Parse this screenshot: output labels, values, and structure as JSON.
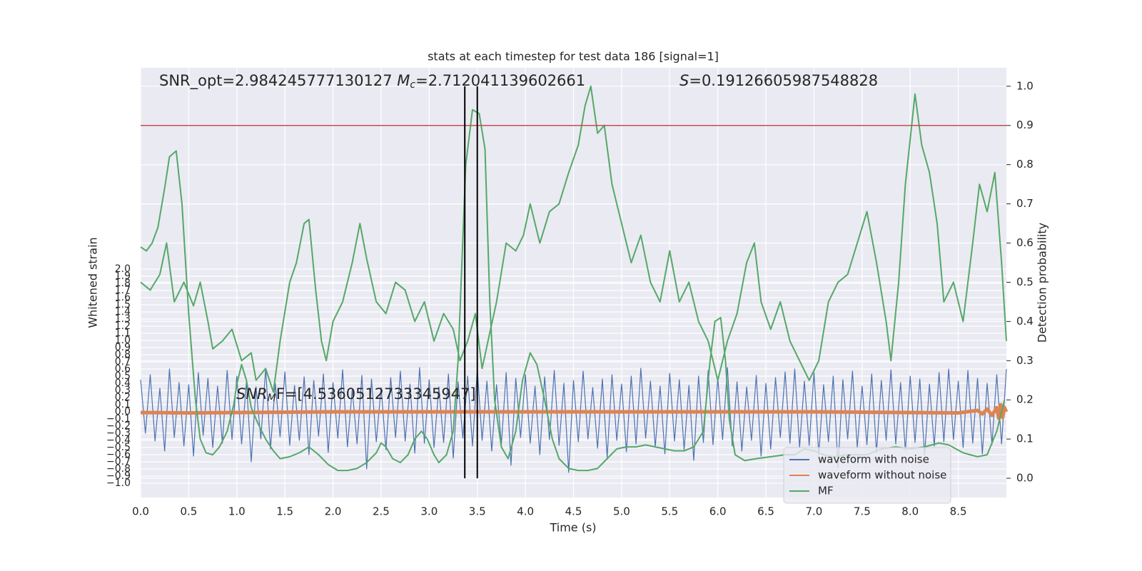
{
  "chart_data": {
    "type": "line",
    "title": "stats at each timestep for test data 186 [signal=1]",
    "xlabel": "Time (s)",
    "ylabel": "Whitened strain",
    "y2label": "Detection probability",
    "annotations": [
      "SNR_opt=2.984245777130127 ",
      "M",
      "c",
      "=2.712041139602661",
      "S",
      "=0.19126605987548828",
      "SNR",
      "M",
      "F=[4.5360512733345947]"
    ],
    "xlim": [
      0,
      9
    ],
    "ylim": [
      -1.2,
      4.82
    ],
    "y2lim": [
      -0.049,
      1.047
    ],
    "xticks": [
      {
        "value": 0,
        "label": "0.0"
      },
      {
        "value": 0.5,
        "label": "0.5"
      },
      {
        "value": 1,
        "label": "1.0"
      },
      {
        "value": 1.5,
        "label": "1.5"
      },
      {
        "value": 2,
        "label": "2.0"
      },
      {
        "value": 2.5,
        "label": "2.5"
      },
      {
        "value": 3,
        "label": "3.0"
      },
      {
        "value": 3.5,
        "label": "3.5"
      },
      {
        "value": 4,
        "label": "4.0"
      },
      {
        "value": 4.5,
        "label": "4.5"
      },
      {
        "value": 5,
        "label": "5.0"
      },
      {
        "value": 5.5,
        "label": "5.5"
      },
      {
        "value": 6,
        "label": "6.0"
      },
      {
        "value": 6.5,
        "label": "6.5"
      },
      {
        "value": 7,
        "label": "7.0"
      },
      {
        "value": 7.5,
        "label": "7.5"
      },
      {
        "value": 8,
        "label": "8.0"
      },
      {
        "value": 8.5,
        "label": "8.5"
      }
    ],
    "yticks": [
      {
        "value": -1,
        "label": "−1.0"
      },
      {
        "value": -0.9,
        "label": "−0.9"
      },
      {
        "value": -0.8,
        "label": "−0.8"
      },
      {
        "value": -0.7,
        "label": "−0.7"
      },
      {
        "value": -0.6,
        "label": "−0.6"
      },
      {
        "value": -0.5,
        "label": "−0.5"
      },
      {
        "value": -0.4,
        "label": "−0.4"
      },
      {
        "value": -0.3,
        "label": "−0.3"
      },
      {
        "value": -0.2,
        "label": "−0.2"
      },
      {
        "value": -0.1,
        "label": "−0.1"
      },
      {
        "value": 0,
        "label": "0.0"
      },
      {
        "value": 0.1,
        "label": "0.1"
      },
      {
        "value": 0.2,
        "label": "0.2"
      },
      {
        "value": 0.3,
        "label": "0.3"
      },
      {
        "value": 0.4,
        "label": "0.4"
      },
      {
        "value": 0.5,
        "label": "0.5"
      },
      {
        "value": 0.6,
        "label": "0.6"
      },
      {
        "value": 0.7,
        "label": "0.7"
      },
      {
        "value": 0.8,
        "label": "0.8"
      },
      {
        "value": 0.9,
        "label": "0.9"
      },
      {
        "value": 1,
        "label": "1.0"
      },
      {
        "value": 1.1,
        "label": "1.1"
      },
      {
        "value": 1.2,
        "label": "1.2"
      },
      {
        "value": 1.3,
        "label": "1.3"
      },
      {
        "value": 1.4,
        "label": "1.4"
      },
      {
        "value": 1.5,
        "label": "1.5"
      },
      {
        "value": 1.6,
        "label": "1.6"
      },
      {
        "value": 1.7,
        "label": "1.7"
      },
      {
        "value": 1.8,
        "label": "1.8"
      },
      {
        "value": 1.9,
        "label": "1.9"
      },
      {
        "value": 2,
        "label": "2.0"
      }
    ],
    "y2ticks": [
      {
        "value": 0,
        "label": "0.0"
      },
      {
        "value": 0.1,
        "label": "0.1"
      },
      {
        "value": 0.2,
        "label": "0.2"
      },
      {
        "value": 0.3,
        "label": "0.3"
      },
      {
        "value": 0.4,
        "label": "0.4"
      },
      {
        "value": 0.5,
        "label": "0.5"
      },
      {
        "value": 0.6,
        "label": "0.6"
      },
      {
        "value": 0.7,
        "label": "0.7"
      },
      {
        "value": 0.8,
        "label": "0.8"
      },
      {
        "value": 0.9,
        "label": "0.9"
      },
      {
        "value": 1,
        "label": "1.0"
      }
    ],
    "grid": true,
    "legend": "lower right",
    "hline": {
      "value": 0.9,
      "axis": "y2",
      "color": "#c44e52"
    },
    "vlines": {
      "x": [
        3.37,
        3.5
      ],
      "ymin": 0,
      "ymax": 1,
      "axis": "y2",
      "color": "#000000"
    },
    "series": [
      {
        "name": "waveform with noise",
        "color": "#4c72b0",
        "width": 1.2,
        "x": [
          0,
          0.05,
          0.1,
          0.15,
          0.2,
          0.25,
          0.3,
          0.35,
          0.4,
          0.45,
          0.5,
          0.55,
          0.6,
          0.65,
          0.7,
          0.75,
          0.8,
          0.85,
          0.9,
          0.95,
          1,
          1.05,
          1.1,
          1.15,
          1.2,
          1.25,
          1.3,
          1.35,
          1.4,
          1.45,
          1.5,
          1.55,
          1.6,
          1.65,
          1.7,
          1.75,
          1.8,
          1.85,
          1.9,
          1.95,
          2,
          2.05,
          2.1,
          2.15,
          2.2,
          2.25,
          2.3,
          2.35,
          2.4,
          2.45,
          2.5,
          2.55,
          2.6,
          2.65,
          2.7,
          2.75,
          2.8,
          2.85,
          2.9,
          2.95,
          3,
          3.05,
          3.1,
          3.15,
          3.2,
          3.25,
          3.3,
          3.35,
          3.4,
          3.45,
          3.5,
          3.55,
          3.6,
          3.65,
          3.7,
          3.75,
          3.8,
          3.85,
          3.9,
          3.95,
          4,
          4.05,
          4.1,
          4.15,
          4.2,
          4.25,
          4.3,
          4.35,
          4.4,
          4.45,
          4.5,
          4.55,
          4.6,
          4.65,
          4.7,
          4.75,
          4.8,
          4.85,
          4.9,
          4.95,
          5,
          5.05,
          5.1,
          5.15,
          5.2,
          5.25,
          5.3,
          5.35,
          5.4,
          5.45,
          5.5,
          5.55,
          5.6,
          5.65,
          5.7,
          5.75,
          5.8,
          5.85,
          5.9,
          5.95,
          6,
          6.05,
          6.1,
          6.15,
          6.2,
          6.25,
          6.3,
          6.35,
          6.4,
          6.45,
          6.5,
          6.55,
          6.6,
          6.65,
          6.7,
          6.75,
          6.8,
          6.85,
          6.9,
          6.95,
          7,
          7.05,
          7.1,
          7.15,
          7.2,
          7.25,
          7.3,
          7.35,
          7.4,
          7.45,
          7.5,
          7.55,
          7.6,
          7.65,
          7.7,
          7.75,
          7.8,
          7.85,
          7.9,
          7.95,
          8,
          8.05,
          8.1,
          8.15,
          8.2,
          8.25,
          8.3,
          8.35,
          8.4,
          8.45,
          8.5,
          8.55,
          8.6,
          8.65,
          8.7,
          8.75,
          8.8,
          8.85,
          8.9,
          8.95,
          9
        ],
        "values": [
          0.45,
          -0.3,
          0.52,
          -0.41,
          0.33,
          -0.55,
          0.6,
          -0.36,
          0.41,
          -0.48,
          0.38,
          -0.62,
          0.55,
          -0.33,
          0.47,
          -0.5,
          0.36,
          -0.44,
          0.58,
          -0.39,
          0.5,
          -0.45,
          0.42,
          -0.7,
          0.35,
          -0.38,
          0.61,
          -0.52,
          0.4,
          -0.35,
          0.56,
          -0.47,
          0.37,
          -0.4,
          0.49,
          -0.6,
          0.44,
          -0.34,
          0.53,
          -0.57,
          0.41,
          -0.37,
          0.59,
          -0.49,
          0.32,
          -0.45,
          0.51,
          -0.8,
          0.46,
          -0.42,
          0.34,
          -0.53,
          0.48,
          -0.36,
          0.57,
          -0.41,
          0.39,
          -0.58,
          0.62,
          -0.44,
          0.45,
          -0.5,
          0.35,
          -0.43,
          0.53,
          -0.65,
          0.42,
          -0.37,
          0.5,
          -0.48,
          0.6,
          -0.4,
          0.43,
          -0.55,
          0.38,
          -0.46,
          0.55,
          -0.75,
          0.47,
          -0.36,
          0.52,
          -0.44,
          0.36,
          -0.6,
          0.49,
          -0.39,
          0.58,
          -0.47,
          0.4,
          -0.85,
          0.44,
          -0.42,
          0.57,
          -0.38,
          0.34,
          -0.51,
          0.46,
          -0.64,
          0.52,
          -0.4,
          0.39,
          -0.56,
          0.5,
          -0.45,
          0.61,
          -0.37,
          0.43,
          -0.49,
          0.36,
          -0.59,
          0.54,
          -0.41,
          0.45,
          -0.53,
          0.37,
          -0.68,
          0.5,
          -0.43,
          0.58,
          -0.46,
          0.47,
          -0.39,
          0.62,
          -0.48,
          0.42,
          -0.55,
          0.35,
          -0.4,
          0.51,
          -0.62,
          0.4,
          -0.52,
          0.48,
          -0.36,
          0.56,
          -0.44,
          0.6,
          -0.5,
          0.43,
          -0.47,
          0.55,
          -0.6,
          0.38,
          -0.42,
          0.5,
          -0.78,
          0.45,
          -0.38,
          0.57,
          -0.5,
          0.36,
          -0.46,
          0.53,
          -0.57,
          0.44,
          -0.4,
          0.59,
          -0.45,
          0.41,
          -0.54,
          0.5,
          -0.43,
          0.46,
          -0.61,
          0.39,
          -0.48,
          0.55,
          -0.42,
          0.6,
          -0.39,
          0.43,
          -0.5,
          0.58,
          -0.44,
          0.47,
          -0.59,
          0.4,
          -0.46,
          0.52,
          -0.45,
          0.6
        ]
      },
      {
        "name": "waveform without noise",
        "color": "#dd8452",
        "width": 5,
        "x": [
          0,
          0.5,
          1,
          1.5,
          2,
          2.5,
          3,
          3.5,
          4,
          4.5,
          5,
          5.5,
          6,
          6.5,
          7,
          7.5,
          8,
          8.5,
          8.7,
          8.75,
          8.8,
          8.85,
          8.9,
          8.92,
          8.94,
          8.96,
          8.98,
          9
        ],
        "values": [
          -0.01,
          -0.015,
          -0.01,
          -0.005,
          0,
          0,
          0,
          0,
          0,
          0,
          0,
          0,
          0,
          0,
          0,
          -0.005,
          -0.01,
          -0.015,
          0.02,
          -0.03,
          0.04,
          -0.05,
          0.06,
          -0.09,
          0.1,
          -0.08,
          0.06,
          0
        ]
      },
      {
        "name": "MF",
        "color": "#55a868",
        "width": 2,
        "axis": "y2",
        "x": [
          0,
          0.06,
          0.12,
          0.18,
          0.25,
          0.3,
          0.37,
          0.43,
          0.5,
          0.57,
          0.62,
          0.68,
          0.75,
          0.82,
          0.9,
          0.97,
          1,
          1.05,
          1.1,
          1.15,
          1.22,
          1.3,
          1.38,
          1.45,
          1.55,
          1.65,
          1.75,
          1.85,
          1.95,
          2.05,
          2.15,
          2.25,
          2.35,
          2.45,
          2.5,
          2.55,
          2.62,
          2.7,
          2.78,
          2.85,
          2.92,
          2.98,
          3.05,
          3.1,
          3.18,
          3.25,
          3.3,
          3.38,
          3.45,
          3.52,
          3.58,
          3.63,
          3.68,
          3.75,
          3.82,
          3.9,
          3.97,
          4.05,
          4.12,
          4.2,
          4.28,
          4.35,
          4.45,
          4.55,
          4.65,
          4.75,
          4.85,
          4.95,
          5.05,
          5.15,
          5.25,
          5.35,
          5.45,
          5.55,
          5.65,
          5.75,
          5.85,
          5.92,
          5.97,
          6.03,
          6.08,
          6.12,
          6.18,
          6.28,
          6.4,
          6.55,
          6.7,
          6.8,
          6.9,
          7,
          7.1,
          7.2,
          7.35,
          7.45,
          7.55,
          7.7,
          7.85,
          8,
          8.15,
          8.3,
          8.4,
          8.55,
          8.7,
          8.8,
          8.9,
          8.98,
          null,
          0,
          0.1,
          0.2,
          0.27,
          0.35,
          0.45,
          0.55,
          0.62,
          0.7,
          0.75,
          0.85,
          0.95,
          1.05,
          1.15,
          1.2,
          1.3,
          1.38,
          1.45,
          1.55,
          1.62,
          1.7,
          1.75,
          1.82,
          1.88,
          1.93,
          2,
          2.1,
          2.2,
          2.28,
          2.35,
          2.45,
          2.55,
          2.65,
          2.75,
          2.85,
          2.95,
          3.05,
          3.15,
          3.25,
          3.32,
          3.4,
          3.48,
          3.55,
          3.62,
          3.7,
          3.8,
          3.9,
          3.98,
          4.05,
          4.15,
          4.25,
          4.35,
          4.45,
          4.55,
          4.62,
          4.68,
          4.75,
          4.82,
          4.9,
          5,
          5.1,
          5.2,
          5.3,
          5.4,
          5.5,
          5.6,
          5.7,
          5.8,
          5.9,
          6,
          6.1,
          6.2,
          6.3,
          6.38,
          6.45,
          6.55,
          6.65,
          6.75,
          6.85,
          6.95,
          7.05,
          7.15,
          7.25,
          7.35,
          7.45,
          7.55,
          7.65,
          7.75,
          7.8,
          7.88,
          7.95,
          8.05,
          8.12,
          8.2,
          8.28,
          8.35,
          8.45,
          8.55,
          8.65,
          8.72,
          8.8,
          8.88,
          8.95,
          9
        ],
        "values": [
          0.59,
          0.58,
          0.6,
          0.64,
          0.74,
          0.82,
          0.835,
          0.7,
          0.42,
          0.2,
          0.1,
          0.065,
          0.06,
          0.08,
          0.12,
          0.19,
          0.24,
          0.29,
          0.25,
          0.18,
          0.14,
          0.1,
          0.07,
          0.05,
          0.055,
          0.065,
          0.08,
          0.06,
          0.035,
          0.02,
          0.02,
          0.025,
          0.04,
          0.065,
          0.09,
          0.08,
          0.05,
          0.04,
          0.06,
          0.1,
          0.12,
          0.1,
          0.06,
          0.04,
          0.06,
          0.12,
          0.3,
          0.8,
          0.94,
          0.93,
          0.84,
          0.45,
          0.2,
          0.08,
          0.05,
          0.12,
          0.25,
          0.32,
          0.29,
          0.2,
          0.1,
          0.05,
          0.025,
          0.02,
          0.02,
          0.025,
          0.05,
          0.075,
          0.08,
          0.08,
          0.085,
          0.08,
          0.075,
          0.07,
          0.07,
          0.08,
          0.12,
          0.3,
          0.4,
          0.41,
          0.3,
          0.15,
          0.06,
          0.045,
          0.05,
          0.055,
          0.06,
          0.06,
          0.075,
          0.07,
          0.06,
          0.055,
          0.06,
          0.06,
          0.06,
          0.075,
          0.08,
          0.075,
          0.08,
          0.09,
          0.085,
          0.065,
          0.055,
          0.06,
          0.12,
          0.2,
          null,
          0.5,
          0.48,
          0.52,
          0.6,
          0.45,
          0.5,
          0.44,
          0.5,
          0.4,
          0.33,
          0.35,
          0.38,
          0.3,
          0.32,
          0.25,
          0.28,
          0.22,
          0.35,
          0.5,
          0.55,
          0.65,
          0.66,
          0.48,
          0.35,
          0.3,
          0.4,
          0.45,
          0.55,
          0.65,
          0.56,
          0.45,
          0.42,
          0.5,
          0.48,
          0.4,
          0.45,
          0.35,
          0.42,
          0.38,
          0.3,
          0.35,
          0.42,
          0.28,
          0.36,
          0.45,
          0.6,
          0.58,
          0.62,
          0.7,
          0.6,
          0.68,
          0.7,
          0.78,
          0.85,
          0.95,
          1,
          0.88,
          0.9,
          0.75,
          0.65,
          0.55,
          0.62,
          0.5,
          0.45,
          0.58,
          0.45,
          0.5,
          0.4,
          0.35,
          0.25,
          0.35,
          0.42,
          0.55,
          0.6,
          0.45,
          0.38,
          0.45,
          0.35,
          0.3,
          0.25,
          0.3,
          0.45,
          0.5,
          0.52,
          0.6,
          0.68,
          0.55,
          0.4,
          0.3,
          0.5,
          0.75,
          0.98,
          0.85,
          0.78,
          0.65,
          0.45,
          0.5,
          0.4,
          0.6,
          0.75,
          0.68,
          0.78,
          0.55,
          0.35
        ]
      }
    ]
  }
}
